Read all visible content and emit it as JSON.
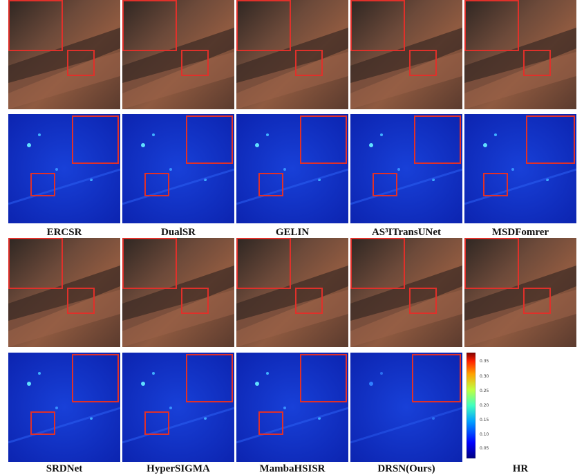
{
  "figure": {
    "methods_row1": [
      "ERCSR",
      "DualSR",
      "GELIN",
      "AS³ITransUNet",
      "MSDFomrer"
    ],
    "methods_row2": [
      "SRDNet",
      "HyperSIGMA",
      "MambaHSISR",
      "DRSN(Ours)"
    ],
    "reference_label": "HR",
    "colorbar": {
      "ticks": [
        "0.35",
        "0.30",
        "0.25",
        "0.20",
        "0.15",
        "0.10",
        "0.05"
      ],
      "colormap": "jet"
    },
    "colors": {
      "roi_box": "#e0302a",
      "error_base": "#1030c8"
    }
  }
}
